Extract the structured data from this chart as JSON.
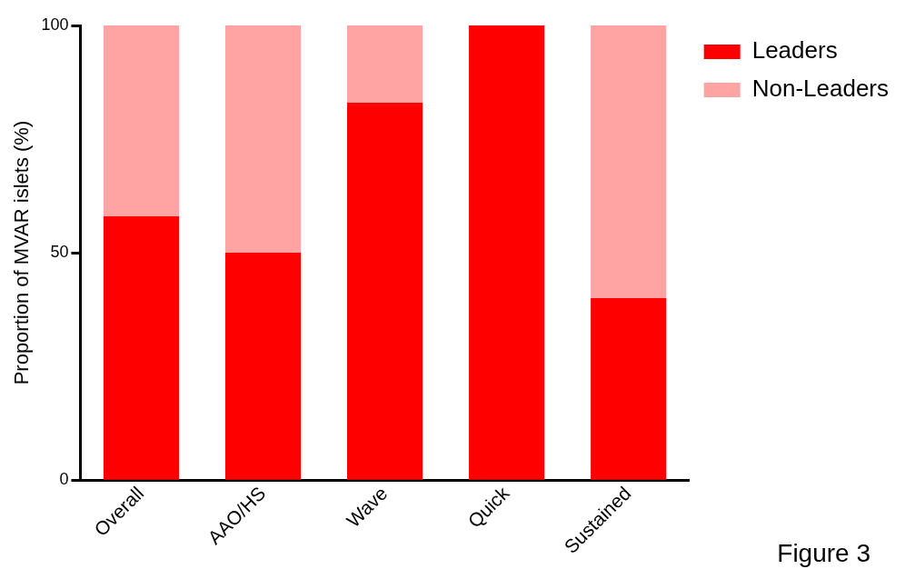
{
  "chart_data": {
    "type": "bar",
    "stacked": true,
    "ylabel": "Proportion of MVAR islets (%)",
    "categories": [
      "Overall",
      "AAO/HS",
      "Wave",
      "Quick",
      "Sustained"
    ],
    "series": [
      {
        "name": "Leaders",
        "color": "#ff0000",
        "values": [
          58,
          50,
          83,
          100,
          40
        ]
      },
      {
        "name": "Non-Leaders",
        "color": "#ffa3a3",
        "values": [
          42,
          50,
          17,
          0,
          60
        ]
      }
    ],
    "ylim": [
      0,
      100
    ],
    "yticks": [
      0,
      50,
      100
    ],
    "grid": false,
    "legend": "top right",
    "annotations": [
      "Figure 3"
    ]
  }
}
